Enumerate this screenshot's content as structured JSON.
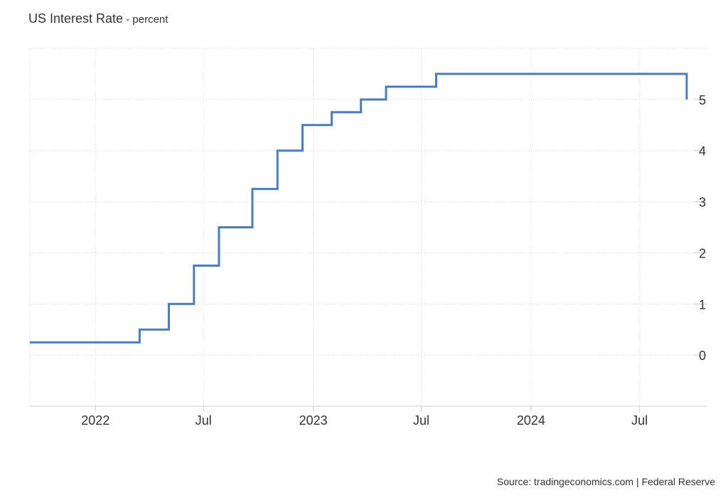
{
  "header": {
    "title": "US Interest Rate",
    "unit": " - percent"
  },
  "footer": {
    "source": "Source: tradingeconomics.com | Federal Reserve"
  },
  "colors": {
    "line": "#4a7dba",
    "grid": "#d8d8d8",
    "axis": "#cccccc",
    "text": "#333333"
  },
  "chart_data": {
    "type": "line",
    "step": true,
    "title": "US Interest Rate",
    "subtitle": "percent",
    "xlabel": "",
    "ylabel": "",
    "grid": true,
    "legend": "none",
    "y_axis_side": "right",
    "xlim": [
      "2021-09-13",
      "2024-09-30"
    ],
    "ylim": [
      -1,
      6
    ],
    "y_ticks": [
      0,
      1,
      2,
      3,
      4,
      5
    ],
    "x_ticks": [
      {
        "date": "2022-01-01",
        "label": "2022"
      },
      {
        "date": "2022-07-01",
        "label": "Jul"
      },
      {
        "date": "2023-01-01",
        "label": "2023"
      },
      {
        "date": "2023-07-01",
        "label": "Jul"
      },
      {
        "date": "2024-01-01",
        "label": "2024"
      },
      {
        "date": "2024-07-01",
        "label": "Jul"
      }
    ],
    "series": [
      {
        "points": [
          {
            "x": "2021-09-13",
            "y": 0.25
          },
          {
            "x": "2022-03-16",
            "y": 0.5
          },
          {
            "x": "2022-05-04",
            "y": 1.0
          },
          {
            "x": "2022-06-15",
            "y": 1.75
          },
          {
            "x": "2022-07-27",
            "y": 2.5
          },
          {
            "x": "2022-09-21",
            "y": 3.25
          },
          {
            "x": "2022-11-02",
            "y": 4.0
          },
          {
            "x": "2022-12-14",
            "y": 4.5
          },
          {
            "x": "2023-02-01",
            "y": 4.75
          },
          {
            "x": "2023-03-22",
            "y": 5.0
          },
          {
            "x": "2023-05-03",
            "y": 5.25
          },
          {
            "x": "2023-07-26",
            "y": 5.5
          },
          {
            "x": "2024-09-18",
            "y": 5.0
          }
        ]
      }
    ]
  }
}
